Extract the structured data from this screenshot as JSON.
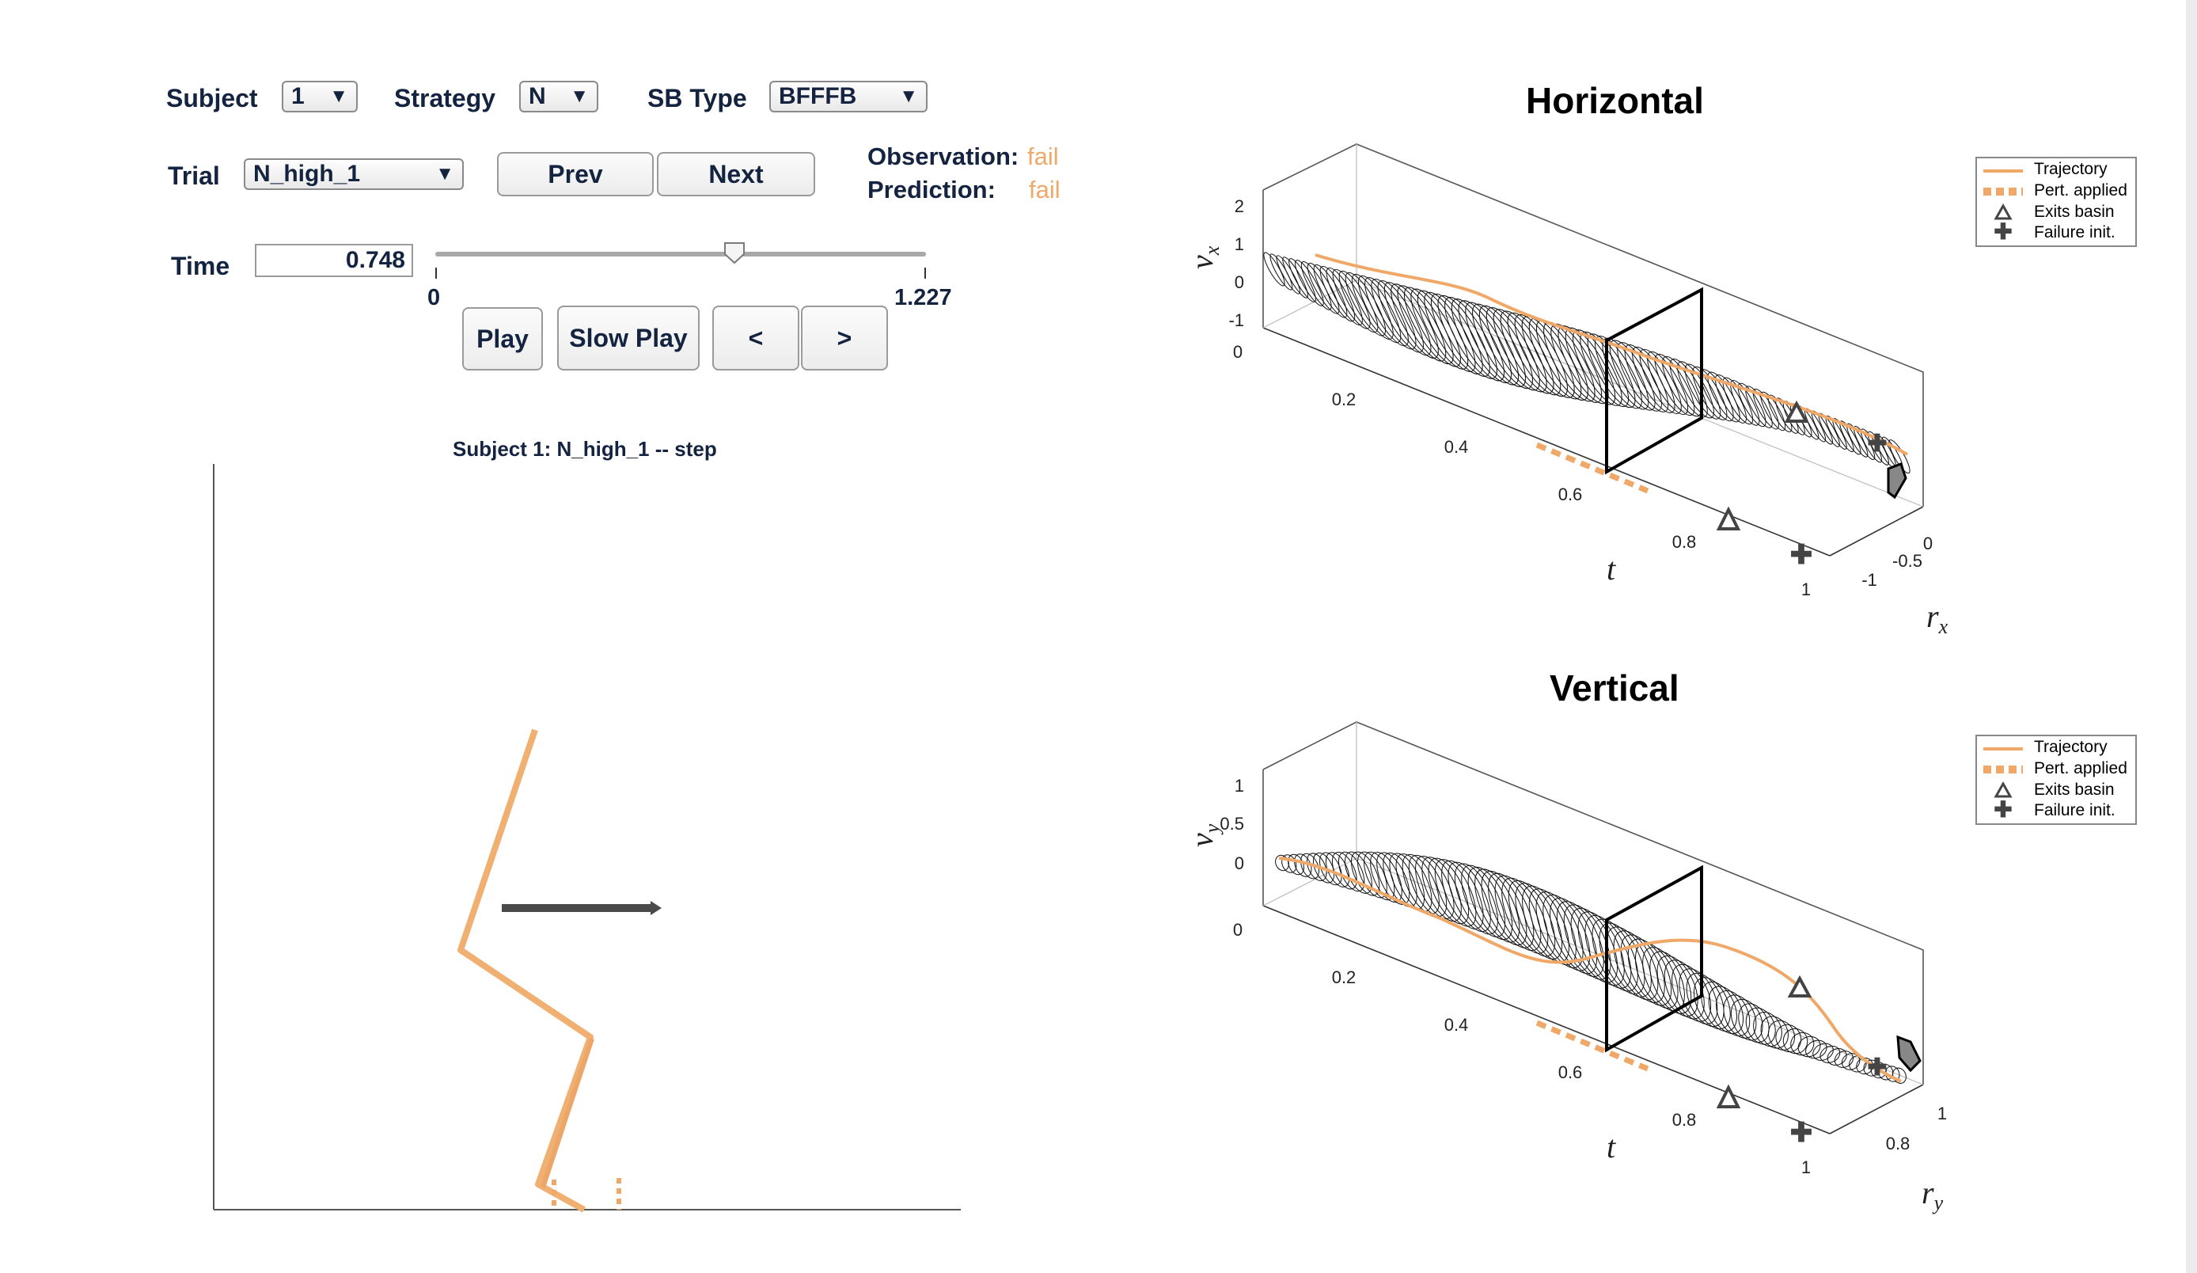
{
  "controls": {
    "subject": {
      "label": "Subject",
      "value": "1"
    },
    "strategy": {
      "label": "Strategy",
      "value": "N"
    },
    "sb_type": {
      "label": "SB Type",
      "value": "BFFFB"
    },
    "trial": {
      "label": "Trial",
      "value": "N_high_1"
    },
    "prev_label": "Prev",
    "next_label": "Next",
    "observation_label": "Observation:",
    "observation_value": "fail",
    "prediction_label": "Prediction:",
    "prediction_value": "fail",
    "time": {
      "label": "Time",
      "value": "0.748",
      "min": "0",
      "max": "1.227",
      "fraction": 0.61
    },
    "play_label": "Play",
    "slow_play_label": "Slow Play",
    "step_back_label": "<",
    "step_fwd_label": ">"
  },
  "figure": {
    "title": "Subject 1: N_high_1 -- step"
  },
  "horizontal_plot": {
    "title": "Horizontal",
    "v_label": "v",
    "v_sub": "x",
    "r_label": "r",
    "r_sub": "x",
    "t_label": "t",
    "v_ticks": [
      "2",
      "1",
      "0",
      "-1"
    ],
    "t_ticks": [
      "0",
      "0.2",
      "0.4",
      "0.6",
      "0.8",
      "1"
    ],
    "r_ticks": [
      "0",
      "-0.5",
      "-1"
    ]
  },
  "vertical_plot": {
    "title": "Vertical",
    "v_label": "v",
    "v_sub": "y",
    "r_label": "r",
    "r_sub": "y",
    "t_label": "t",
    "v_ticks": [
      "1",
      "0.5",
      "0"
    ],
    "t_ticks": [
      "0",
      "0.2",
      "0.4",
      "0.6",
      "0.8",
      "1"
    ],
    "r_ticks": [
      "1",
      "0.8"
    ]
  },
  "legend": {
    "trajectory": "Trajectory",
    "pert_applied": "Pert. applied",
    "exits_basin": "Exits basin",
    "failure_init": "Failure init."
  },
  "colors": {
    "accent": "#f0a868",
    "dark": "#4a4a4a",
    "text": "#14233f"
  }
}
